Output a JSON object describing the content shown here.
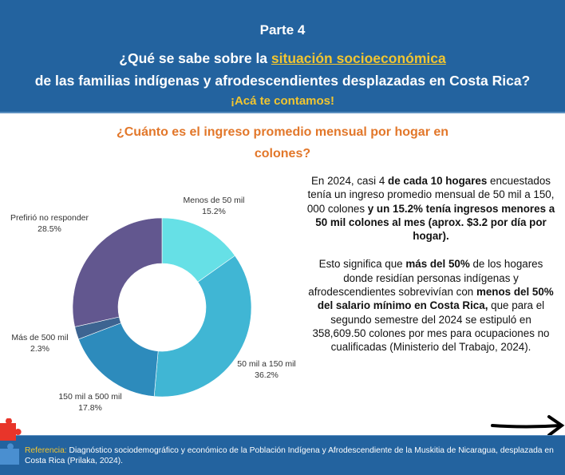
{
  "header": {
    "part": "Parte 4",
    "question_pre": "¿Qué se sabe sobre la ",
    "question_highlight": "situación socioeconómica",
    "question_post": " de las familias indígenas y afrodescendientes desplazadas en Costa Rica?",
    "subtitle": "¡Acá te contamos!"
  },
  "chart_data": {
    "type": "pie",
    "title": "¿Cuánto es el ingreso promedio mensual por hogar en colones?",
    "donut": true,
    "slices": [
      {
        "label": "Menos de 50 mil",
        "value": 15.2,
        "display": "15.2%",
        "color": "#66e0e6"
      },
      {
        "label": "50 mil a 150 mil",
        "value": 36.2,
        "display": "36.2%",
        "color": "#40b6d4"
      },
      {
        "label": "150 mil a 500 mil",
        "value": 17.8,
        "display": "17.8%",
        "color": "#2d8bbc"
      },
      {
        "label": "Más de 500 mil",
        "value": 2.3,
        "display": "2.3%",
        "color": "#3d6491"
      },
      {
        "label": "Prefirió no responder",
        "value": 28.5,
        "display": "28.5%",
        "color": "#62578f"
      }
    ]
  },
  "description": {
    "p1": [
      {
        "t": "En 2024, casi 4 ",
        "b": false
      },
      {
        "t": "de cada 10 hogares",
        "b": true
      },
      {
        "t": " encuestados tenía  un ingreso promedio mensual de 50 mil a 150, 000 colones ",
        "b": false
      },
      {
        "t": "y un 15.2% tenía ingresos menores a 50 mil colones al mes (aprox. $3.2 por día por hogar).",
        "b": true
      }
    ],
    "p2": [
      {
        "t": "Esto significa que ",
        "b": false
      },
      {
        "t": "más del 50%",
        "b": true
      },
      {
        "t": " de los hogares donde residían personas indígenas y afrodescendientes sobrevivían con ",
        "b": false
      },
      {
        "t": "menos del 50% del salario mínimo en Costa Rica,",
        "b": true
      },
      {
        "t": " que para el segundo semestre del 2024 se estipuló en 358,609.50 colones por mes para ocupaciones no cualificadas (Ministerio del Trabajo, 2024).",
        "b": false
      }
    ]
  },
  "footer": {
    "ref_label": "Referencia:",
    "ref_text": " Diagnóstico sociodemográfico y económico de la Población Indígena y Afrodescendiente de la Muskitia de Nicaragua, desplazada en Costa Rica (Prilaka, 2024)."
  }
}
